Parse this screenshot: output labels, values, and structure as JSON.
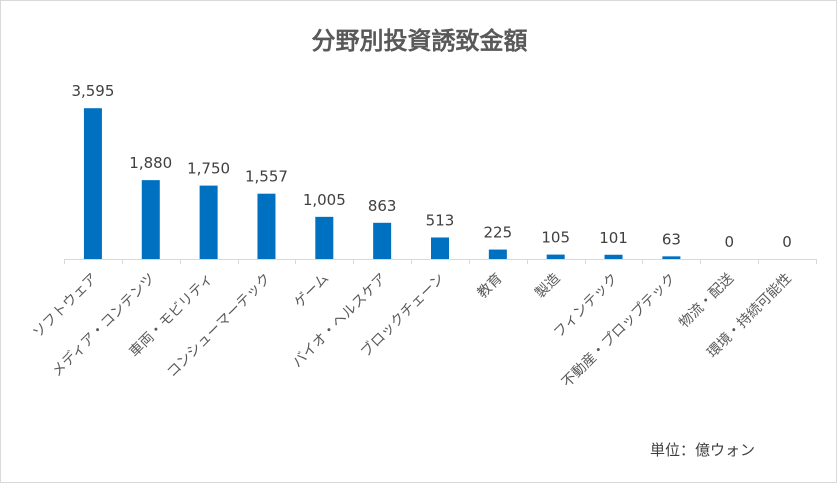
{
  "chart_data": {
    "type": "bar",
    "title": "分野別投資誘致金額",
    "unit_note": "単位：億ウォン",
    "categories": [
      "ソフトウェア",
      "メディア・コンテンツ",
      "車両・モビリティ",
      "コンシューマーテック",
      "ゲーム",
      "バイオ・ヘルスケア",
      "ブロックチェーン",
      "教育",
      "製造",
      "フィンテック",
      "不動産・プロップテック",
      "物流・配送",
      "環境・持続可能性"
    ],
    "values": [
      3595,
      1880,
      1750,
      1557,
      1005,
      863,
      513,
      225,
      105,
      101,
      63,
      0,
      0
    ],
    "value_labels": [
      "3,595",
      "1,880",
      "1,750",
      "1,557",
      "1,005",
      "863",
      "513",
      "225",
      "105",
      "101",
      "63",
      "0",
      "0"
    ],
    "ylim": [
      0,
      3600
    ],
    "bar_color": "#0070c0",
    "grid": false,
    "legend": "none"
  }
}
